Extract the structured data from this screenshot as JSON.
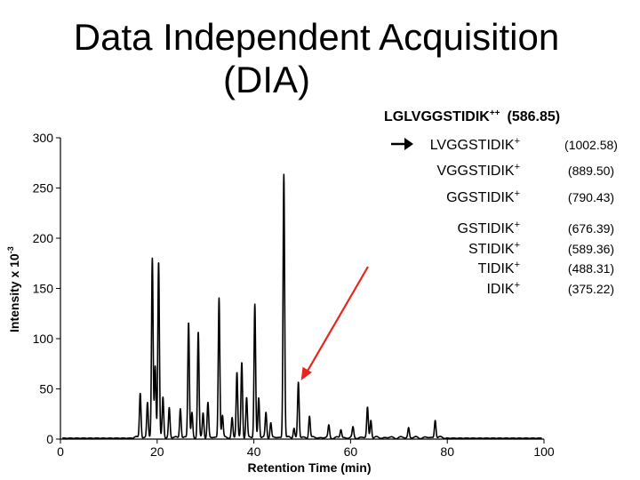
{
  "title": {
    "line1": "Data Independent Acquisition",
    "line2": "(DIA)"
  },
  "chart_data": {
    "type": "line",
    "xlabel": "Retention Time (min)",
    "ylabel": "Intensity x 10",
    "ylabel_exponent": "-3",
    "xlim": [
      0,
      100
    ],
    "ylim": [
      0,
      300
    ],
    "x_ticks": [
      "0",
      "20",
      "40",
      "60",
      "80",
      "100"
    ],
    "y_ticks": [
      "0",
      "50",
      "100",
      "150",
      "200",
      "250",
      "300"
    ],
    "grid": false,
    "peaks": [
      {
        "x": 16.5,
        "y": 45
      },
      {
        "x": 18.0,
        "y": 35
      },
      {
        "x": 19.0,
        "y": 178
      },
      {
        "x": 19.6,
        "y": 72
      },
      {
        "x": 20.3,
        "y": 175
      },
      {
        "x": 21.2,
        "y": 40
      },
      {
        "x": 22.5,
        "y": 30
      },
      {
        "x": 24.8,
        "y": 30
      },
      {
        "x": 26.5,
        "y": 115
      },
      {
        "x": 27.2,
        "y": 25
      },
      {
        "x": 28.5,
        "y": 105
      },
      {
        "x": 29.5,
        "y": 25
      },
      {
        "x": 30.5,
        "y": 35
      },
      {
        "x": 32.8,
        "y": 140
      },
      {
        "x": 33.5,
        "y": 22
      },
      {
        "x": 35.5,
        "y": 20
      },
      {
        "x": 36.5,
        "y": 65
      },
      {
        "x": 37.5,
        "y": 75
      },
      {
        "x": 38.5,
        "y": 40
      },
      {
        "x": 40.2,
        "y": 133
      },
      {
        "x": 41.0,
        "y": 40
      },
      {
        "x": 42.5,
        "y": 25
      },
      {
        "x": 43.5,
        "y": 15
      },
      {
        "x": 46.2,
        "y": 263
      },
      {
        "x": 48.3,
        "y": 10
      },
      {
        "x": 49.2,
        "y": 55
      },
      {
        "x": 51.5,
        "y": 22
      },
      {
        "x": 55.5,
        "y": 12
      },
      {
        "x": 58.0,
        "y": 8
      },
      {
        "x": 60.5,
        "y": 10
      },
      {
        "x": 63.5,
        "y": 30
      },
      {
        "x": 64.2,
        "y": 18
      },
      {
        "x": 72.0,
        "y": 10
      },
      {
        "x": 77.5,
        "y": 18
      }
    ],
    "annotation": {
      "precursor": "LGLVGGSTIDIK",
      "precursor_charge": "++",
      "precursor_mz": "(586.85)",
      "fragments": [
        {
          "seq": "LVGGSTIDIK",
          "charge": "+",
          "mz": "(1002.58)"
        },
        {
          "seq": "VGGSTIDIK",
          "charge": "+",
          "mz": "(889.50)"
        },
        {
          "seq": "GGSTIDIK",
          "charge": "+",
          "mz": "(790.43)"
        },
        {
          "seq": "GSTIDIK",
          "charge": "+",
          "mz": "(676.39)"
        },
        {
          "seq": "STIDIK",
          "charge": "+",
          "mz": "(589.36)"
        },
        {
          "seq": "TIDIK",
          "charge": "+",
          "mz": "(488.31)"
        },
        {
          "seq": "IDIK",
          "charge": "+",
          "mz": "(375.22)"
        }
      ]
    },
    "arrow_target": {
      "x": 49.2,
      "y": 55
    },
    "colors": {
      "trace": "#000000",
      "arrow": "#e8261e",
      "axis": "#000000"
    }
  }
}
